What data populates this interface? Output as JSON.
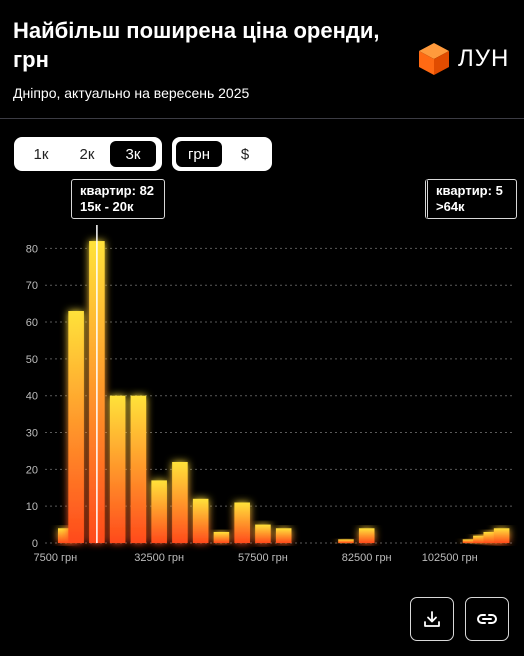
{
  "header": {
    "title": "Найбільш поширена ціна оренди, грн",
    "subtitle": "Дніпро, актуально на вересень 2025",
    "logo_text": "ЛУН"
  },
  "filters": {
    "rooms": [
      {
        "label": "1к",
        "active": false
      },
      {
        "label": "2к",
        "active": false
      },
      {
        "label": "3к",
        "active": true
      }
    ],
    "currency": [
      {
        "label": "грн",
        "active": true
      },
      {
        "label": "$",
        "active": false
      }
    ]
  },
  "tooltips": {
    "left": {
      "count": "квартир: 82",
      "range": "15к - 20к"
    },
    "right": {
      "count": "квартир: 5",
      "range": ">64к"
    }
  },
  "icons": {
    "download": "download-icon",
    "link": "link-icon",
    "logo": "cube-icon"
  },
  "colors": {
    "background": "#000000",
    "bar_top": "#ffe23a",
    "bar_bottom": "#ff4a1c",
    "logo": "#ff6a13"
  },
  "chart_data": {
    "type": "bar",
    "title": "",
    "xlabel": "",
    "ylabel": "",
    "ylim": [
      0,
      85
    ],
    "xlim": [
      5000,
      117500
    ],
    "yticks": [
      0,
      10,
      20,
      30,
      40,
      50,
      60,
      70,
      80
    ],
    "xticks": [
      {
        "value": 7500,
        "label": "7500 грн"
      },
      {
        "value": 32500,
        "label": "32500 грн"
      },
      {
        "value": 57500,
        "label": "57500 грн"
      },
      {
        "value": 82500,
        "label": "82500 грн"
      },
      {
        "value": 102500,
        "label": "102500 грн"
      }
    ],
    "grid": true,
    "highlight_x": 17500,
    "bin_width": 5000,
    "bars": [
      {
        "x": 10000,
        "value": 4
      },
      {
        "x": 12500,
        "value": 63
      },
      {
        "x": 17500,
        "value": 82
      },
      {
        "x": 22500,
        "value": 40
      },
      {
        "x": 27500,
        "value": 40
      },
      {
        "x": 32500,
        "value": 17
      },
      {
        "x": 37500,
        "value": 22
      },
      {
        "x": 42500,
        "value": 12
      },
      {
        "x": 47500,
        "value": 3
      },
      {
        "x": 52500,
        "value": 11
      },
      {
        "x": 57500,
        "value": 5
      },
      {
        "x": 62500,
        "value": 4
      },
      {
        "x": 77500,
        "value": 1
      },
      {
        "x": 82500,
        "value": 4
      },
      {
        "x": 107500,
        "value": 1
      },
      {
        "x": 110000,
        "value": 2
      },
      {
        "x": 112500,
        "value": 3
      },
      {
        "x": 115000,
        "value": 4
      }
    ]
  }
}
